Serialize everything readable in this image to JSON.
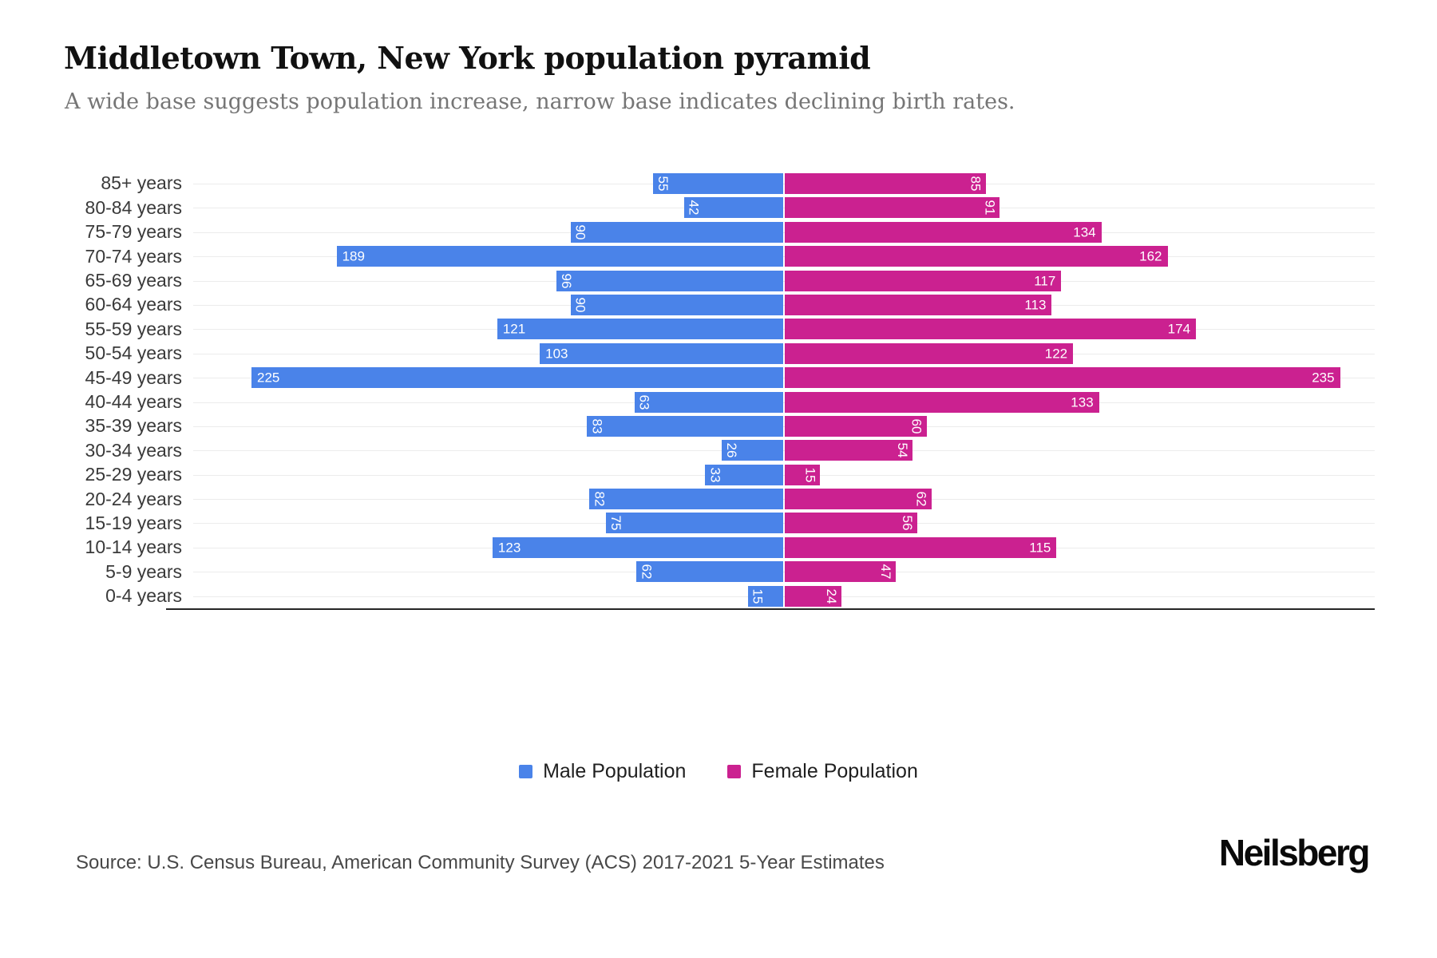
{
  "title": "Middletown Town, New York population pyramid",
  "subtitle": "A wide base suggests population increase, narrow base indicates declining birth rates.",
  "source": "Source: U.S. Census Bureau, American Community Survey (ACS) 2017-2021 5-Year Estimates",
  "brand": "Neilsberg",
  "legend": {
    "male_label": "Male Population",
    "female_label": "Female Population"
  },
  "colors": {
    "male_bar": "#4A83E9",
    "female_bar": "#CB2190",
    "grid_line": "#ECECEC",
    "axis_line": "#262626",
    "title_text": "#111111",
    "subtitle_text": "#757575",
    "age_label_text": "#3A3A3A",
    "value_label_text": "#FFFFFF",
    "legend_text": "#1F1F1F",
    "source_text": "#484848",
    "brand_text": "#0A0A0A"
  },
  "chart_data": {
    "type": "bar",
    "variant": "population-pyramid",
    "title": "Middletown Town, New York population pyramid",
    "categories": [
      "85+ years",
      "80-84 years",
      "75-79 years",
      "70-74 years",
      "65-69 years",
      "60-64 years",
      "55-59 years",
      "50-54 years",
      "45-49 years",
      "40-44 years",
      "35-39 years",
      "30-34 years",
      "25-29 years",
      "20-24 years",
      "15-19 years",
      "10-14 years",
      "5-9 years",
      "0-4 years"
    ],
    "series": [
      {
        "name": "Male Population",
        "side": "left",
        "color": "#4A83E9",
        "values": [
          55,
          42,
          90,
          189,
          96,
          90,
          121,
          103,
          225,
          63,
          83,
          26,
          33,
          82,
          75,
          123,
          62,
          15
        ]
      },
      {
        "name": "Female Population",
        "side": "right",
        "color": "#CB2190",
        "values": [
          85,
          91,
          134,
          162,
          117,
          113,
          174,
          122,
          235,
          133,
          60,
          54,
          15,
          62,
          56,
          115,
          47,
          24
        ]
      }
    ],
    "axis_max_per_side": 250,
    "value_labels": "inside-bar-far-end",
    "grid": true,
    "legend_position": "bottom"
  }
}
